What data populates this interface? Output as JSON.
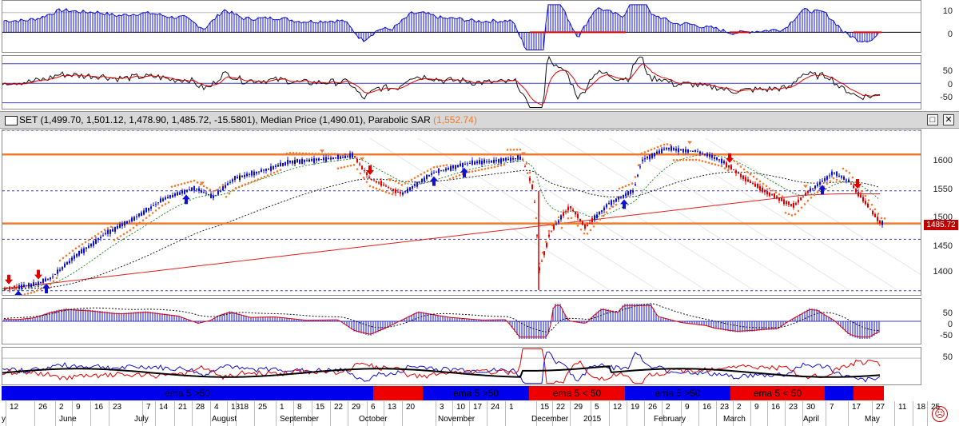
{
  "chart_data": [
    {
      "type": "bar",
      "panel": "top-histogram",
      "y_ticks": [
        "10",
        "0"
      ],
      "ylim": [
        -10,
        16
      ]
    },
    {
      "type": "line",
      "panel": "oscillator",
      "y_ticks": [
        "50",
        "0",
        "-50"
      ],
      "ylim": [
        -65,
        70
      ]
    },
    {
      "type": "line",
      "panel": "price",
      "title": "SET (1,499.70, 1,501.12, 1,478.90, 1,485.72, -15.5801), Median Price (1,490.01), Parabolic SAR",
      "sar_value": "(1,552.74)",
      "last_price": "1485.72",
      "y_ticks": [
        "1600",
        "1550",
        "1500",
        "1450",
        "1400"
      ],
      "ylim": [
        1368,
        1640
      ],
      "resistance_lines": [
        1600,
        1486
      ]
    },
    {
      "type": "bar",
      "panel": "macd",
      "y_ticks": [
        "50",
        "0",
        "-50"
      ],
      "ylim": [
        -70,
        70
      ]
    },
    {
      "type": "line",
      "panel": "bottom-lines",
      "y_ticks": [
        "50"
      ],
      "ylim": [
        0,
        70
      ]
    }
  ],
  "ema_bar": {
    "label_up": "ema 5 >50",
    "label_down": "ema 5 < 50"
  },
  "dates": {
    "top": [
      "12",
      "26",
      "2",
      "9",
      "16",
      "23",
      "7",
      "14",
      "21",
      "28",
      "4",
      "13",
      "18",
      "25",
      "1",
      "8",
      "15",
      "22",
      "29",
      "6",
      "13",
      "20",
      "3",
      "10",
      "17",
      "24",
      "1",
      "15",
      "22",
      "29",
      "5",
      "12",
      "19",
      "26",
      "2",
      "9",
      "16",
      "23",
      "2",
      "9",
      "16",
      "23",
      "30",
      "7",
      "17",
      "27",
      "11",
      "18",
      "25"
    ],
    "months": [
      "y",
      "June",
      "July",
      "August",
      "September",
      "October",
      "November",
      "December",
      "2015",
      "February",
      "March",
      "April",
      "May"
    ]
  },
  "colors": {
    "up": "#1010d0",
    "down": "#e00000",
    "sar": "#f07a2e",
    "ma_long": "#e02020",
    "ma_mid": "#222222",
    "ma_short": "#2a8a2a",
    "level": "#f07a2e",
    "dash": "#3a3ad0"
  }
}
